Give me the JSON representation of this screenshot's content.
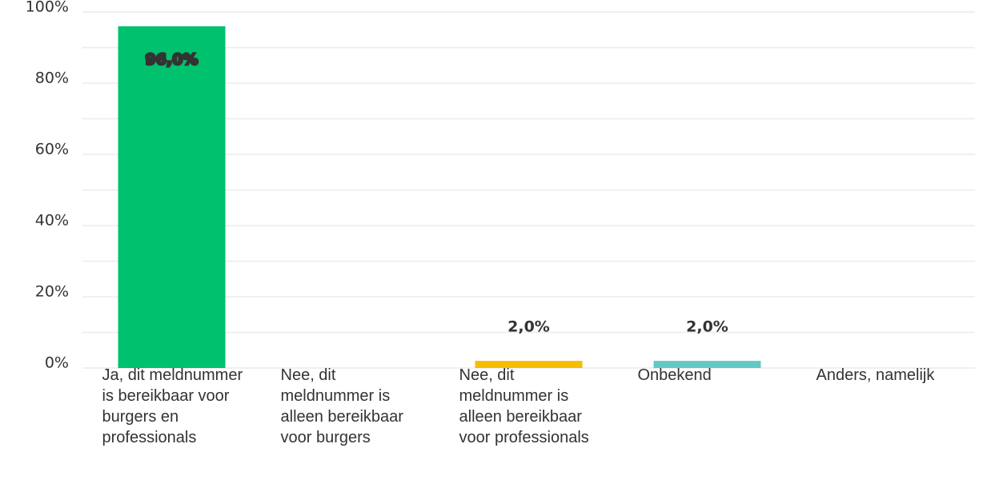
{
  "chart_data": {
    "type": "bar",
    "categories": [
      "Ja, dit meldnummer is bereikbaar voor burgers en professionals",
      "Nee, dit meldnummer is alleen bereikbaar voor burgers",
      "Nee, dit meldnummer is alleen bereikbaar voor professionals",
      "Onbekend",
      "Anders, namelijk"
    ],
    "values": [
      96,
      0,
      2,
      2,
      0
    ],
    "value_labels": [
      "96,0%",
      null,
      "2,0%",
      "2,0%",
      null
    ],
    "colors": [
      "#00c16e",
      null,
      "#f5be00",
      "#62c8c6",
      null
    ],
    "ylim": [
      0,
      100
    ],
    "yticks": [
      {
        "value": 0,
        "label": "0%"
      },
      {
        "value": 20,
        "label": "20%"
      },
      {
        "value": 40,
        "label": "40%"
      },
      {
        "value": 60,
        "label": "60%"
      },
      {
        "value": 80,
        "label": "80%"
      },
      {
        "value": 100,
        "label": "100%"
      }
    ],
    "minor_yticks": [
      10,
      30,
      50,
      70,
      90
    ],
    "grid": true
  }
}
